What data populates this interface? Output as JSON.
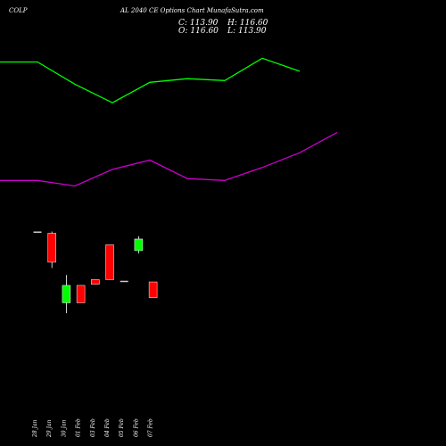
{
  "header": {
    "symbol": "COLP",
    "title": "AL 2040 CE Options Chart MunafaSutra.com"
  },
  "ohlc": {
    "c_label": "C:",
    "c_value": "113.90",
    "h_label": "H:",
    "h_value": "116.60",
    "o_label": "O:",
    "o_value": "116.60",
    "l_label": "L:",
    "l_value": "113.90"
  },
  "colors": {
    "background": "#000000",
    "up": "#00ff00",
    "down": "#ff0000",
    "upper_band": "#00ff00",
    "lower_band": "#cc00cc",
    "text": "#ffffff"
  },
  "chart_data": {
    "type": "candlestick",
    "categories": [
      "28 Jan",
      "29 Jan",
      "30 Jan",
      "01 Feb",
      "03 Feb",
      "04 Feb",
      "05 Feb",
      "06 Feb",
      "07 Feb"
    ],
    "candles": [
      {
        "date": "28 Jan",
        "open": 125.3,
        "high": 125.3,
        "low": 125.3,
        "close": 125.3
      },
      {
        "date": "29 Jan",
        "open": 125.0,
        "high": 125.3,
        "low": 119.0,
        "close": 120.0
      },
      {
        "date": "30 Jan",
        "open": 113.0,
        "high": 117.8,
        "low": 111.2,
        "close": 116.0
      },
      {
        "date": "01 Feb",
        "open": 116.0,
        "high": 116.0,
        "low": 113.0,
        "close": 113.0
      },
      {
        "date": "03 Feb",
        "open": 117.0,
        "high": 117.0,
        "low": 116.2,
        "close": 116.2
      },
      {
        "date": "04 Feb",
        "open": 123.0,
        "high": 123.0,
        "low": 117.0,
        "close": 117.0
      },
      {
        "date": "05 Feb",
        "open": 116.8,
        "high": 116.8,
        "low": 116.8,
        "close": 116.8
      },
      {
        "date": "06 Feb",
        "open": 122.0,
        "high": 124.5,
        "low": 121.5,
        "close": 124.0
      },
      {
        "date": "07 Feb",
        "open": 116.6,
        "high": 116.6,
        "low": 113.9,
        "close": 113.9
      }
    ],
    "upper_band": [
      {
        "slot": -1,
        "value": 163.0
      },
      {
        "slot": 0,
        "value": 163.0
      },
      {
        "slot": 2.5,
        "value": 157.0
      },
      {
        "slot": 5,
        "value": 152.0
      },
      {
        "slot": 7.5,
        "value": 157.5
      },
      {
        "slot": 10,
        "value": 158.5
      },
      {
        "slot": 12.5,
        "value": 158.0
      },
      {
        "slot": 15,
        "value": 164.0
      },
      {
        "slot": 17.5,
        "value": 160.5
      }
    ],
    "lower_band": [
      {
        "slot": -1,
        "value": 131.0
      },
      {
        "slot": 0,
        "value": 131.0
      },
      {
        "slot": 2.5,
        "value": 129.5
      },
      {
        "slot": 5,
        "value": 134.0
      },
      {
        "slot": 7.5,
        "value": 136.5
      },
      {
        "slot": 10,
        "value": 131.5
      },
      {
        "slot": 12.5,
        "value": 131.0
      },
      {
        "slot": 15,
        "value": 134.5
      },
      {
        "slot": 17.5,
        "value": 138.5
      },
      {
        "slot": 20,
        "value": 144.0
      }
    ],
    "title": "",
    "xlabel": "",
    "ylabel": "",
    "grid": false
  }
}
